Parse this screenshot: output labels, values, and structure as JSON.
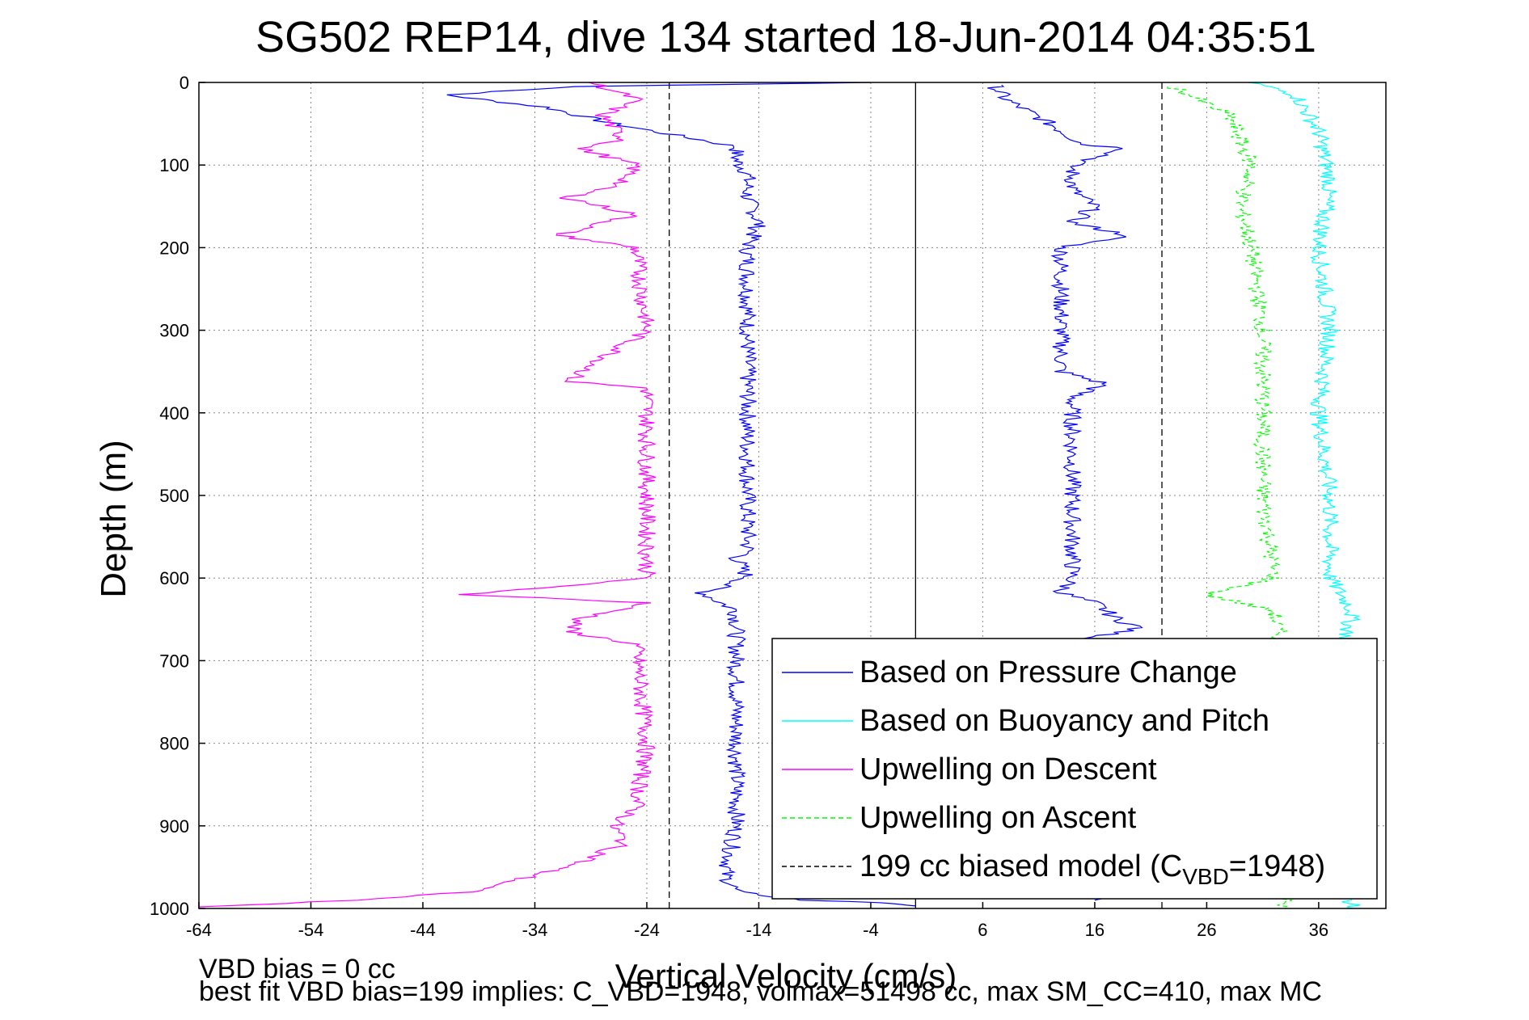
{
  "chart_data": {
    "type": "line",
    "title": "SG502 REP14, dive 134 started 18-Jun-2014 04:35:51",
    "xlabel": "Vertical Velocity (cm/s)",
    "ylabel": "Depth (m)",
    "xlim": [
      -64,
      42
    ],
    "ylim": [
      0,
      1000
    ],
    "y_reversed": true,
    "grid": true,
    "legend_position": "lower-right",
    "xticks": [
      -64,
      -54,
      -44,
      -34,
      -24,
      -14,
      -4,
      6,
      16,
      26,
      36
    ],
    "yticks": [
      0,
      100,
      200,
      300,
      400,
      500,
      600,
      700,
      800,
      900,
      1000
    ],
    "reference_lines": [
      {
        "x": -22,
        "style": "dashed",
        "color": "#000000"
      },
      {
        "x": 0,
        "style": "solid",
        "color": "#000000"
      },
      {
        "x": 22,
        "style": "dashed",
        "color": "#000000"
      }
    ],
    "series": [
      {
        "name": "Based on Pressure Change",
        "color": "#0000ff",
        "style": "solid",
        "points": [
          [
            -4,
            0
          ],
          [
            -30,
            5
          ],
          [
            -42,
            15
          ],
          [
            -38,
            22
          ],
          [
            -33,
            30
          ],
          [
            -30,
            40
          ],
          [
            -27,
            50
          ],
          [
            -23,
            60
          ],
          [
            -19,
            70
          ],
          [
            -16,
            78
          ],
          [
            -16,
            95
          ],
          [
            -15,
            110
          ],
          [
            -15,
            140
          ],
          [
            -14,
            170
          ],
          [
            -15,
            200
          ],
          [
            -15,
            300
          ],
          [
            -15,
            400
          ],
          [
            -15,
            500
          ],
          [
            -15,
            570
          ],
          [
            -16,
            576
          ],
          [
            -15,
            600
          ],
          [
            -19,
            618
          ],
          [
            -16,
            640
          ],
          [
            -16,
            700
          ],
          [
            -16,
            800
          ],
          [
            -16,
            900
          ],
          [
            -17,
            960
          ],
          [
            -16,
            980
          ],
          [
            -10,
            990
          ],
          [
            -3,
            993
          ],
          [
            -1,
            995
          ],
          [
            0,
            997
          ],
          [
            7,
            3
          ],
          [
            8,
            20
          ],
          [
            12,
            50
          ],
          [
            15,
            75
          ],
          [
            19,
            80
          ],
          [
            14,
            100
          ],
          [
            14,
            130
          ],
          [
            16,
            150
          ],
          [
            14,
            170
          ],
          [
            19,
            185
          ],
          [
            13,
            200
          ],
          [
            13,
            300
          ],
          [
            13,
            350
          ],
          [
            17,
            365
          ],
          [
            14,
            380
          ],
          [
            14,
            500
          ],
          [
            14,
            600
          ],
          [
            13,
            618
          ],
          [
            16,
            630
          ],
          [
            18,
            650
          ],
          [
            20,
            660
          ],
          [
            15,
            675
          ],
          [
            16,
            990
          ]
        ]
      },
      {
        "name": "Based on Buoyancy and Pitch",
        "color": "#00ffff",
        "style": "solid",
        "points": [
          [
            30,
            0
          ],
          [
            34,
            15
          ],
          [
            36,
            60
          ],
          [
            37,
            120
          ],
          [
            36,
            200
          ],
          [
            37,
            300
          ],
          [
            36,
            400
          ],
          [
            37,
            500
          ],
          [
            37,
            600
          ],
          [
            38,
            620
          ],
          [
            39,
            640
          ],
          [
            38,
            700
          ],
          [
            38,
            800
          ],
          [
            39,
            890
          ],
          [
            38,
            950
          ],
          [
            39,
            1000
          ]
        ]
      },
      {
        "name": "Upwelling on Descent",
        "color": "#ff00ff",
        "style": "solid",
        "points": [
          [
            -29,
            0
          ],
          [
            -25,
            20
          ],
          [
            -28,
            40
          ],
          [
            -26,
            70
          ],
          [
            -30,
            80
          ],
          [
            -25,
            100
          ],
          [
            -26,
            120
          ],
          [
            -31,
            140
          ],
          [
            -25,
            160
          ],
          [
            -32,
            185
          ],
          [
            -25,
            200
          ],
          [
            -24,
            300
          ],
          [
            -31,
            362
          ],
          [
            -24,
            370
          ],
          [
            -24,
            500
          ],
          [
            -24,
            600
          ],
          [
            -40,
            620
          ],
          [
            -24,
            630
          ],
          [
            -30,
            650
          ],
          [
            -31,
            665
          ],
          [
            -25,
            680
          ],
          [
            -24,
            800
          ],
          [
            -25,
            880
          ],
          [
            -27,
            900
          ],
          [
            -26,
            920
          ],
          [
            -29,
            940
          ],
          [
            -34,
            960
          ],
          [
            -40,
            980
          ],
          [
            -50,
            990
          ],
          [
            -64,
            998
          ]
        ]
      },
      {
        "name": "Upwelling on Ascent",
        "color": "#00ff00",
        "style": "dashed",
        "points": [
          [
            23,
            5
          ],
          [
            28,
            40
          ],
          [
            30,
            100
          ],
          [
            29,
            150
          ],
          [
            30,
            200
          ],
          [
            31,
            300
          ],
          [
            31,
            400
          ],
          [
            31,
            500
          ],
          [
            32,
            600
          ],
          [
            26,
            620
          ],
          [
            32,
            640
          ],
          [
            33,
            700
          ],
          [
            33,
            800
          ],
          [
            33,
            900
          ],
          [
            33,
            1000
          ]
        ]
      },
      {
        "name": "199 cc biased model (C",
        "color": "#000000",
        "style": "dashed",
        "points": []
      }
    ],
    "legend_entries": [
      "Based on Pressure Change",
      "Based on Buoyancy and Pitch",
      "Upwelling on Descent",
      "Upwelling on Ascent",
      "199 cc biased model (C"
    ],
    "legend_last_subscript": "VBD",
    "legend_last_suffix": "=1948)"
  },
  "footer": {
    "line1": "VBD bias = 0 cc",
    "line2": "best fit VBD bias=199 implies: C_VBD=1948, volmax=51498 cc, max SM_CC=410, max MC"
  }
}
